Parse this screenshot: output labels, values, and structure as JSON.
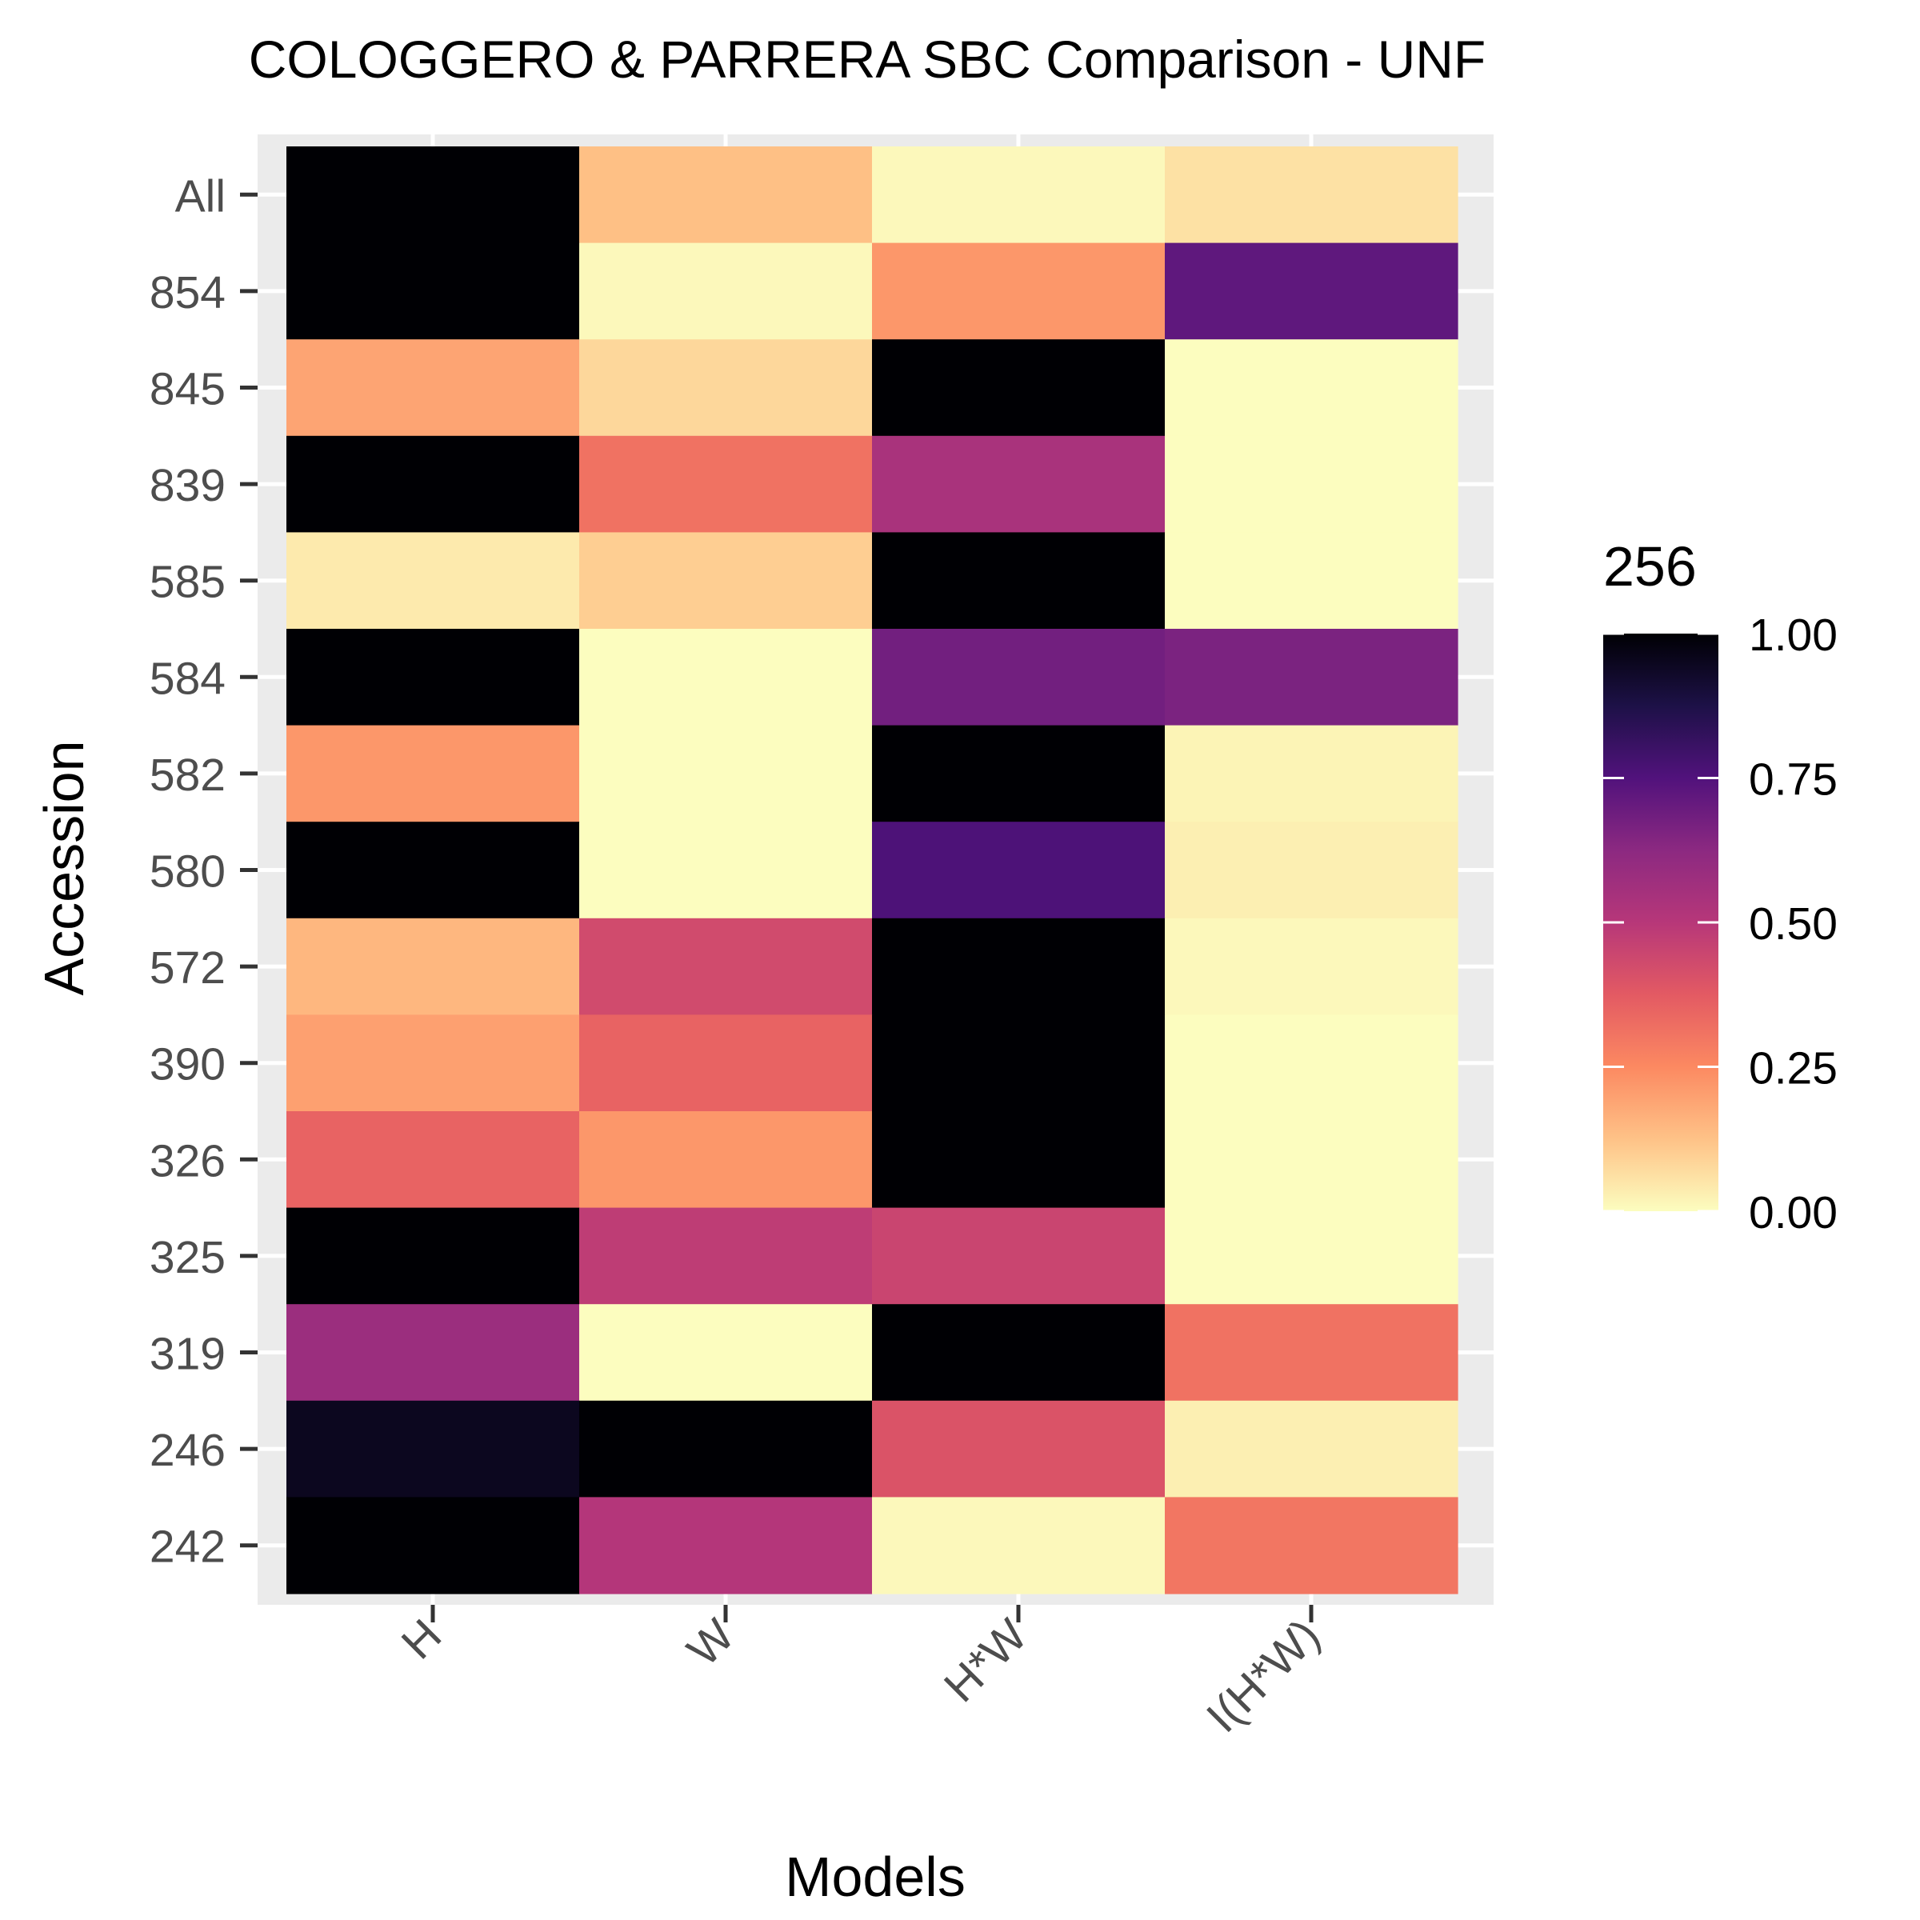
{
  "chart_data": {
    "type": "heatmap",
    "title": "COLOGGERO & PARRERA SBC Comparison - UNF",
    "xlabel": "Models",
    "ylabel": "Accession",
    "x": [
      "H",
      "W",
      "H*W",
      "I(H*W)"
    ],
    "y": [
      "All",
      "854",
      "845",
      "839",
      "585",
      "584",
      "582",
      "580",
      "572",
      "390",
      "326",
      "325",
      "319",
      "246",
      "242"
    ],
    "values": [
      [
        1.0,
        0.13,
        0.01,
        0.06
      ],
      [
        1.0,
        0.01,
        0.22,
        0.72
      ],
      [
        0.19,
        0.08,
        1.0,
        0.0
      ],
      [
        1.0,
        0.31,
        0.54,
        0.0
      ],
      [
        0.04,
        0.1,
        1.0,
        0.0
      ],
      [
        1.0,
        0.0,
        0.68,
        0.66
      ],
      [
        0.22,
        0.0,
        1.0,
        0.02
      ],
      [
        1.0,
        0.0,
        0.76,
        0.03
      ],
      [
        0.15,
        0.43,
        1.0,
        0.01
      ],
      [
        0.2,
        0.35,
        1.0,
        0.0
      ],
      [
        0.35,
        0.22,
        1.0,
        0.0
      ],
      [
        1.0,
        0.48,
        0.45,
        0.0
      ],
      [
        0.58,
        0.0,
        1.0,
        0.31
      ],
      [
        0.95,
        1.0,
        0.4,
        0.03
      ],
      [
        1.0,
        0.51,
        0.01,
        0.3
      ]
    ],
    "legend": {
      "title": "256",
      "ticks": [
        "0.00",
        "0.25",
        "0.50",
        "0.75",
        "1.00"
      ],
      "tick_values": [
        0,
        0.25,
        0.5,
        0.75,
        1
      ],
      "range": [
        0,
        1
      ],
      "placement": "right"
    },
    "colormap": "magma-reversed",
    "colors": [
      "#fcfdbf",
      "#fec287",
      "#fc8961",
      "#e35a63",
      "#b73779",
      "#8c2981",
      "#51127c",
      "#1d1147",
      "#000004"
    ],
    "panel_background": "#ebebeb",
    "grid": true
  }
}
